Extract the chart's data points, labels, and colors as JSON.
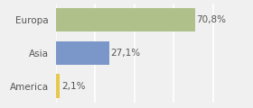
{
  "categories": [
    "America",
    "Asia",
    "Europa"
  ],
  "values": [
    2.1,
    27.1,
    70.8
  ],
  "bar_colors": [
    "#e8c84a",
    "#7b96c8",
    "#afc08a"
  ],
  "labels": [
    "2,1%",
    "27,1%",
    "70,8%"
  ],
  "background_color": "#f0f0f0",
  "xlim": [
    0,
    85
  ],
  "label_fontsize": 7.5,
  "category_fontsize": 7.5,
  "grid_color": "#ffffff",
  "grid_linewidth": 1.2,
  "bar_height": 0.72
}
